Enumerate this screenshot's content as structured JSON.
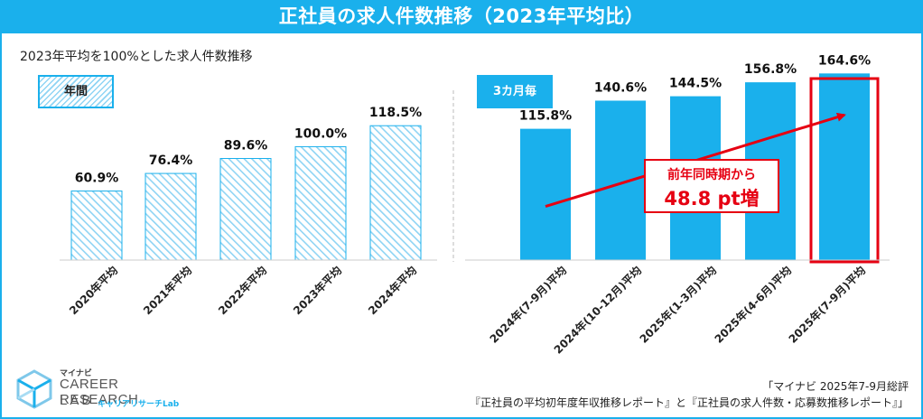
{
  "header": {
    "title": "正社員の求人件数推移（2023年平均比）"
  },
  "subtitle": "2023年平均を100%とした求人件数推移",
  "badges": {
    "annual": "年間",
    "quarterly": "3カ月毎"
  },
  "callout": {
    "line1": "前年同時期から",
    "line2": "48.8 pt増"
  },
  "source": {
    "line1": "「マイナビ 2025年7-9月総評",
    "line2": "『正社員の平均初年度年収推移レポート』と『正社員の求人件数・応募数推移レポート』」"
  },
  "logo": {
    "brand": "マイナビ",
    "name": "CAREER RESEARCH",
    "lab": "LAB",
    "kana": "キャリアリサーチLab"
  },
  "colors": {
    "accent": "#1ab0ec",
    "highlight": "#e60012",
    "hatch": "#8fd4f4"
  },
  "chart_data": {
    "type": "bar",
    "ylim": [
      0,
      180
    ],
    "categories": [
      "2020年平均",
      "2021年平均",
      "2022年平均",
      "2023年平均",
      "2024年平均",
      "2024年(7-9月)平均",
      "2024年(10-12月)平均",
      "2025年(1-3月)平均",
      "2025年(4-6月)平均",
      "2025年(7-9月)平均"
    ],
    "values": [
      60.9,
      76.4,
      89.6,
      100.0,
      118.5,
      115.8,
      140.6,
      144.5,
      156.8,
      164.6
    ],
    "value_labels": [
      "60.9%",
      "76.4%",
      "89.6%",
      "100.0%",
      "118.5%",
      "115.8%",
      "140.6%",
      "144.5%",
      "156.8%",
      "164.6%"
    ],
    "groups": [
      {
        "name": "年間",
        "style": "hatched",
        "indices": [
          0,
          1,
          2,
          3,
          4
        ]
      },
      {
        "name": "3カ月毎",
        "style": "solid",
        "indices": [
          5,
          6,
          7,
          8,
          9
        ]
      }
    ],
    "highlight_index": 9,
    "trend": {
      "from_index": 5,
      "to_index": 9,
      "label": "48.8 pt増"
    }
  }
}
